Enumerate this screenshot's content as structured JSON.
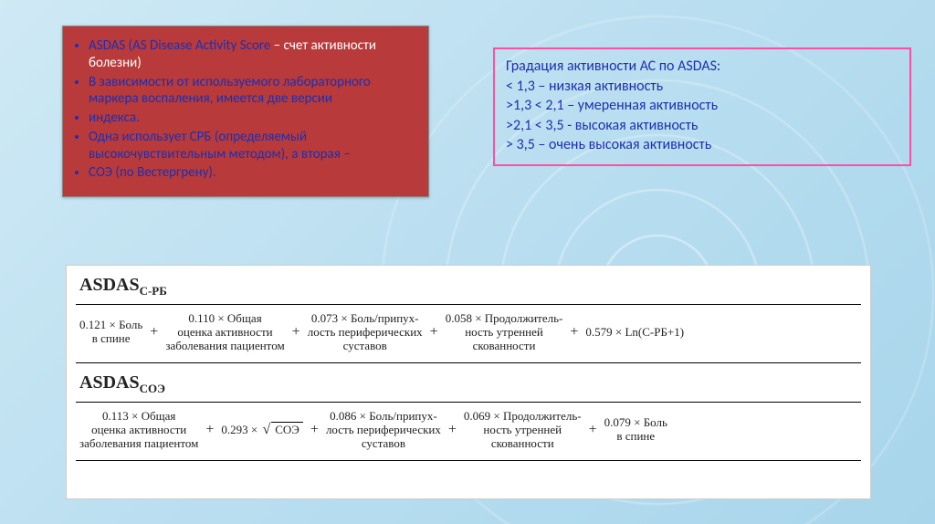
{
  "colors": {
    "red_box_bg": "#b83a3a",
    "red_box_text": "#1f2fb0",
    "red_box_white": "#ffffff",
    "grad_border": "#ff4fa0",
    "grad_text": "#1f2fb0",
    "panel_bg": "#ffffff",
    "page_bg": "#bcdff0"
  },
  "red_box": {
    "items": [
      {
        "lead": "ASDAS (AS Disease Activity Score",
        "white": " – счет активности болезни)"
      },
      {
        "lead": "В зависимости от используемого лабораторного маркера воспаления, имеется две версии"
      },
      {
        "lead": "индекса."
      },
      {
        "lead": "Одна использует СРБ (определяемый высокочувствительным методом), а вторая –"
      },
      {
        "lead": "СОЭ (по Вестергрену)."
      }
    ]
  },
  "grad": {
    "title": "Градация активности АС по ASDAS:",
    "l1": "< 1,3 – низкая активность",
    "l2": ">1,3 < 2,1 – умеренная активность",
    "l3": ">2,1 < 3,5 - высокая активность",
    "l4": "> 3,5 – очень высокая активность"
  },
  "formula": {
    "t1_main": "ASDAS",
    "t1_sub": "С-РБ",
    "t2_main": "ASDAS",
    "t2_sub": "СОЭ",
    "crp": {
      "c1": "0.121 × Боль",
      "c1b": "в спине",
      "c2": "0.110 × Общая",
      "c2b": "оценка активности",
      "c2c": "заболевания пациентом",
      "c3": "0.073 × Боль/припух-",
      "c3b": "лость периферических",
      "c3c": "суставов",
      "c4": "0.058 × Продолжитель-",
      "c4b": "ность утренней",
      "c4c": "скованности",
      "c5": "0.579 × Ln(С-РБ+1)"
    },
    "esr": {
      "c1": "0.113 × Общая",
      "c1b": "оценка активности",
      "c1c": "заболевания пациентом",
      "c2a": "0.293 ×",
      "c2r": "СОЭ",
      "c3": "0.086 × Боль/припух-",
      "c3b": "лость периферических",
      "c3c": "суставов",
      "c4": "0.069 × Продолжитель-",
      "c4b": "ность утренней",
      "c4c": "скованности",
      "c5": "0.079 × Боль",
      "c5b": "в спине"
    }
  }
}
